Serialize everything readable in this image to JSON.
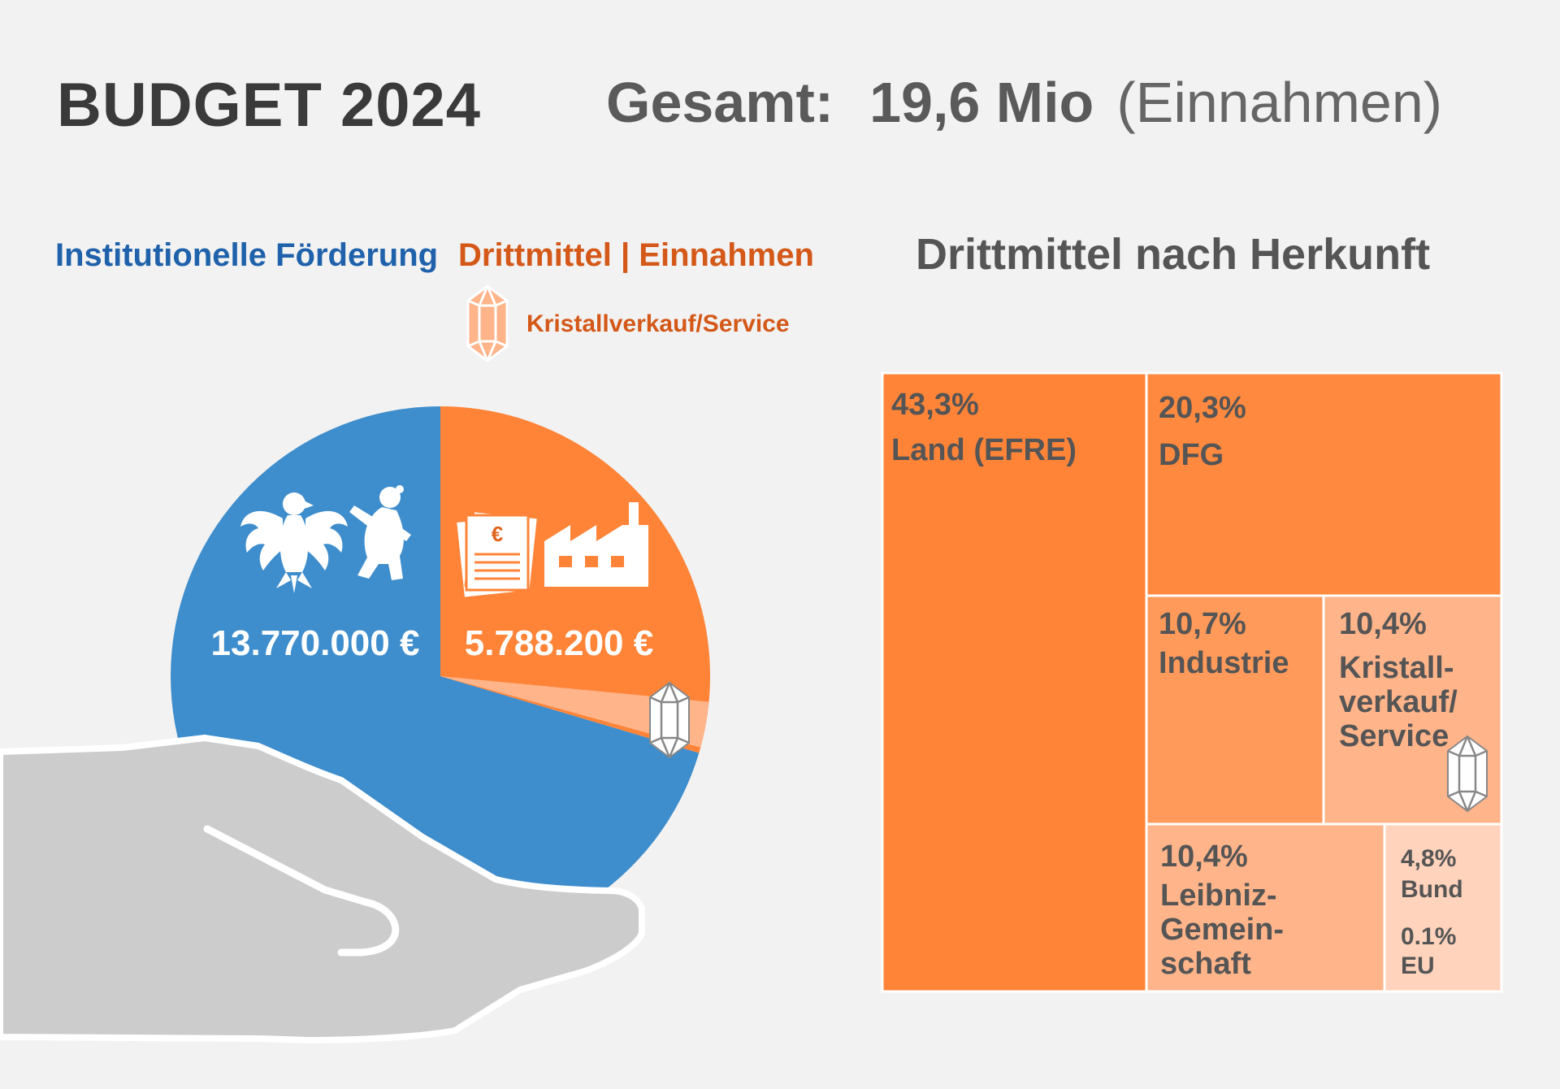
{
  "header": {
    "title": "BUDGET 2024",
    "total_label": "Gesamt:",
    "total_value": "19,6 Mio",
    "total_note": "(Einnahmen)"
  },
  "legend": {
    "institutional": "Institutionelle Förderung",
    "third_party": "Drittmittel | Einnahmen",
    "crystal_sales": "Kristallverkauf/Service"
  },
  "colors": {
    "institutional": "#3e8dcc",
    "third_party": "#ff8438",
    "crystal": "#ffb48a",
    "hand": "#cccccc"
  },
  "chart_data": [
    {
      "type": "pie",
      "title": "",
      "slices": [
        {
          "name": "Institutionelle Förderung",
          "value": 13770000,
          "label": "13.770.000 €",
          "color": "#3e8dcc"
        },
        {
          "name": "Drittmittel | Einnahmen",
          "value": 5788200,
          "label": "5.788.200 €",
          "color": "#ff8438"
        }
      ],
      "sub_slice": {
        "name": "Kristallverkauf/Service",
        "share_of_third_party_pct": 10.4,
        "color": "#ffb48a"
      },
      "icons": [
        "federal-eagle-icon",
        "berlin-bear-icon",
        "euro-documents-icon",
        "factory-icon",
        "crystal-icon"
      ]
    },
    {
      "type": "treemap",
      "title": "Drittmittel nach Herkunft",
      "tiles": [
        {
          "pct": "43,3%",
          "name": "Land (EFRE)",
          "value": 43.3,
          "color": "#ff8438"
        },
        {
          "pct": "20,3%",
          "name": "DFG",
          "value": 20.3,
          "color": "#ff8a3f"
        },
        {
          "pct": "10,7%",
          "name": "Industrie",
          "value": 10.7,
          "color": "#ff9a5a"
        },
        {
          "pct": "10,4%",
          "name": "Kristall-verkauf/Service",
          "lines": [
            "Kristall-",
            "verkauf/",
            "Service"
          ],
          "value": 10.4,
          "color": "#ffb48a"
        },
        {
          "pct": "10,4%",
          "name": "Leibniz-Gemeinschaft",
          "lines": [
            "Leibniz-",
            "Gemein-",
            "schaft"
          ],
          "value": 10.4,
          "color": "#ffb48a"
        },
        {
          "pct": "4,8%",
          "name": "Bund",
          "value": 4.8,
          "color": "#ffd3bc"
        },
        {
          "pct": "0.1%",
          "name": "EU",
          "value": 0.1,
          "color": "#ffd3bc"
        }
      ]
    }
  ]
}
